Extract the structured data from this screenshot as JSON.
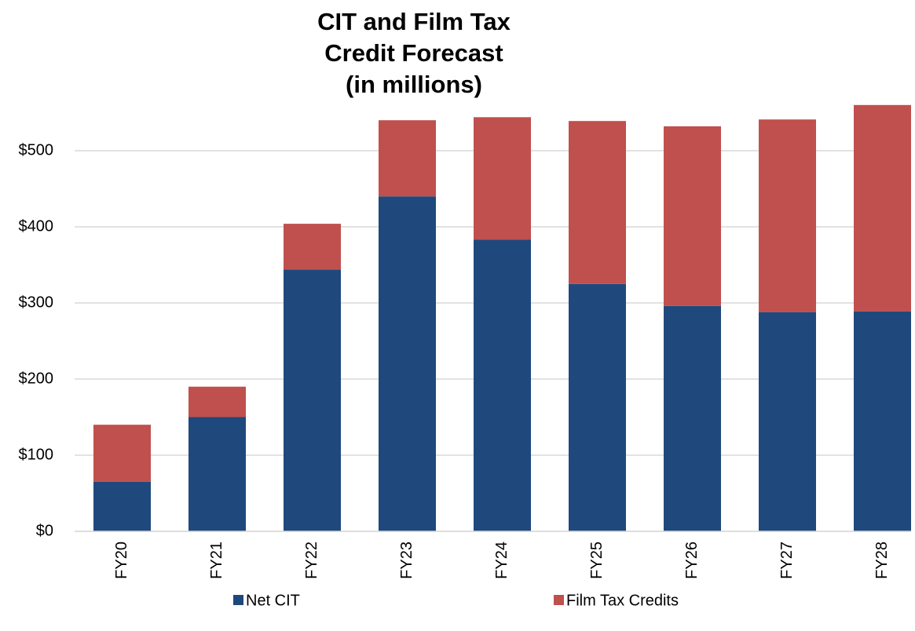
{
  "chart_data": {
    "type": "stacked_bar",
    "title": [
      "CIT and Film Tax",
      "Credit Forecast",
      "(in millions)"
    ],
    "categories": [
      "FY20",
      "FY21",
      "FY22",
      "FY23",
      "FY24",
      "FY25",
      "FY26",
      "FY27",
      "FY28"
    ],
    "series": [
      {
        "name": "Net CIT",
        "color": "#1f497d",
        "values": [
          65,
          150,
          344,
          440,
          383,
          325,
          296,
          288,
          289
        ]
      },
      {
        "name": "Film Tax Credits",
        "color": "#c0504d",
        "values": [
          75,
          40,
          60,
          100,
          161,
          214,
          236,
          253,
          271
        ]
      }
    ],
    "ylim": [
      0,
      600
    ],
    "yticks": [
      {
        "value": 0,
        "label": "$0"
      },
      {
        "value": 100,
        "label": "$100"
      },
      {
        "value": 200,
        "label": "$200"
      },
      {
        "value": 300,
        "label": "$300"
      },
      {
        "value": 400,
        "label": "$400"
      },
      {
        "value": 500,
        "label": "$500"
      }
    ],
    "grid": true,
    "legend": "bottom"
  }
}
